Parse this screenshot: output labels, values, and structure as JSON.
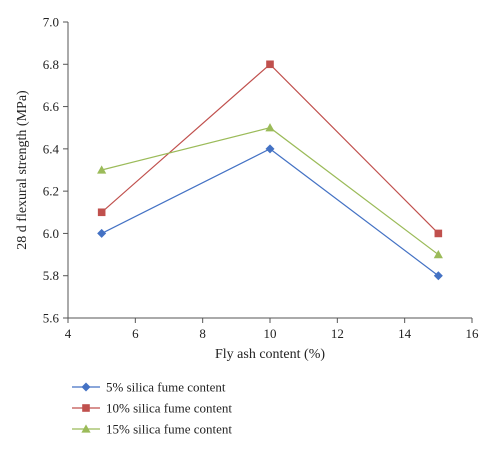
{
  "chart_data": {
    "type": "line",
    "xlabel": "Fly ash content (%)",
    "ylabel": "28 d flexural strength (MPa)",
    "xlim": [
      4,
      16
    ],
    "ylim": [
      5.6,
      7.0
    ],
    "xticks": [
      4,
      6,
      8,
      10,
      12,
      14,
      16
    ],
    "yticks": [
      "5.6",
      "5.8",
      "6.0",
      "6.2",
      "6.4",
      "6.6",
      "6.8",
      "7.0"
    ],
    "grid": false,
    "legend_position": "bottom-left",
    "x": [
      5,
      10,
      15
    ],
    "series": [
      {
        "name": "5% silica fume content",
        "values": [
          6.0,
          6.4,
          5.8
        ],
        "color": "#4472C4",
        "marker": "diamond"
      },
      {
        "name": "10% silica fume content",
        "values": [
          6.1,
          6.8,
          6.0
        ],
        "color": "#C0504D",
        "marker": "square"
      },
      {
        "name": "15% silica fume content",
        "values": [
          6.3,
          6.5,
          5.9
        ],
        "color": "#9BBB59",
        "marker": "triangle"
      }
    ]
  }
}
